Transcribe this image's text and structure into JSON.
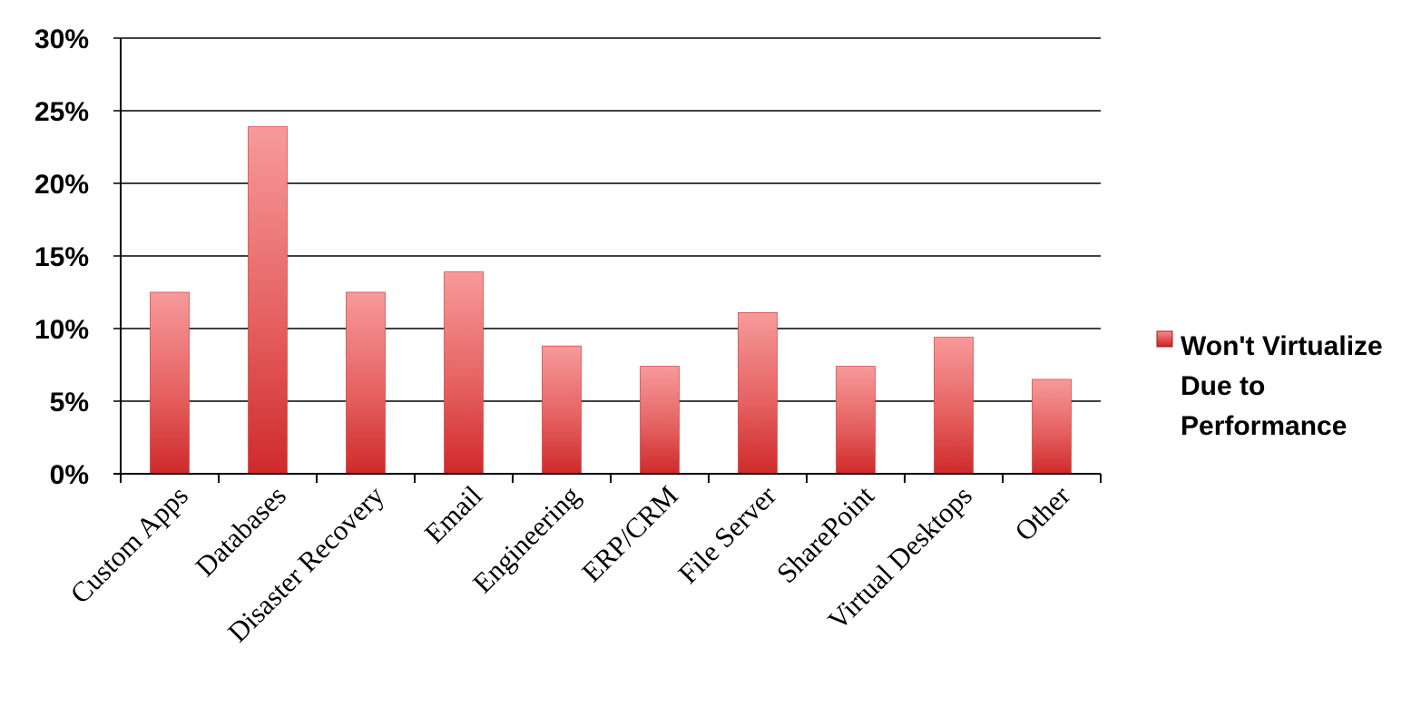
{
  "chart_data": {
    "type": "bar",
    "title": "",
    "xlabel": "",
    "ylabel": "",
    "categories": [
      "Custom Apps",
      "Databases",
      "Disaster Recovery",
      "Email",
      "Engineering",
      "ERP/CRM",
      "File Server",
      "SharePoint",
      "Virtual Desktops",
      "Other"
    ],
    "series": [
      {
        "name": "Won't Virtualize Due to Performance",
        "values": [
          12.5,
          23.9,
          12.5,
          13.9,
          8.8,
          7.4,
          11.1,
          7.4,
          9.4,
          6.5
        ],
        "color": "#e04848"
      }
    ],
    "ylim": [
      0,
      30
    ],
    "yticks": [
      "0%",
      "5%",
      "10%",
      "15%",
      "20%",
      "25%",
      "30%"
    ],
    "grid": true,
    "legend_position": "right",
    "legend_lines": [
      "Won't Virtualize",
      "Due to",
      "Performance"
    ]
  }
}
